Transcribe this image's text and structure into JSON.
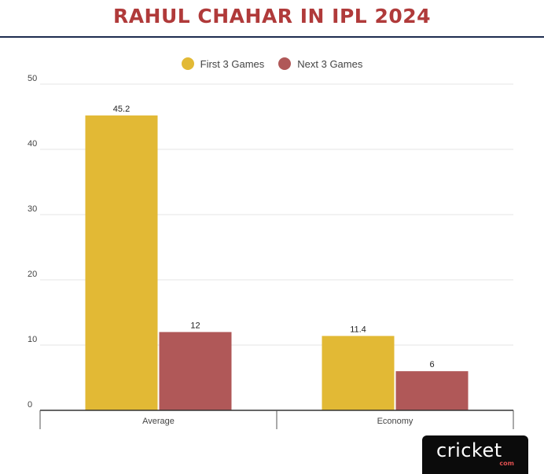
{
  "title": "RAHUL CHAHAR IN IPL 2024",
  "logo": {
    "main": "cricket",
    "sub": "com"
  },
  "chart_data": {
    "type": "bar",
    "title": "RAHUL CHAHAR IN IPL 2024",
    "categories": [
      "Average",
      "Economy"
    ],
    "series": [
      {
        "name": "First 3 Games",
        "values": [
          45.2,
          11.4
        ],
        "color": "#e2b935"
      },
      {
        "name": "Next 3 Games",
        "values": [
          12,
          6
        ],
        "color": "#b05858"
      }
    ],
    "yticks": [
      0,
      10,
      20,
      30,
      40,
      50
    ],
    "ylim": [
      0,
      50
    ],
    "grid": true,
    "legend": "top-center"
  }
}
